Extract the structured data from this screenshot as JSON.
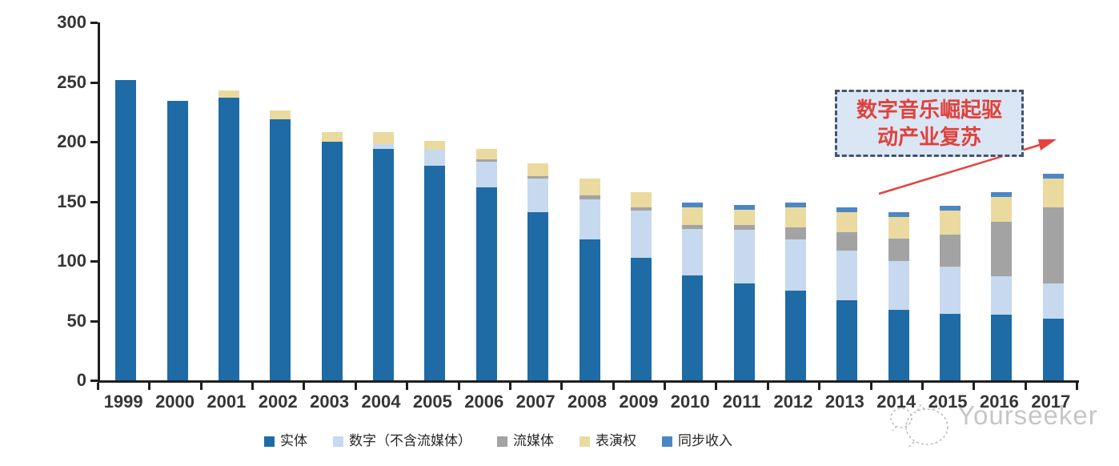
{
  "chart_data": {
    "type": "bar",
    "stacked": true,
    "title": "",
    "xlabel": "",
    "ylabel": "",
    "categories": [
      "1999",
      "2000",
      "2001",
      "2002",
      "2003",
      "2004",
      "2005",
      "2006",
      "2007",
      "2008",
      "2009",
      "2010",
      "2011",
      "2012",
      "2013",
      "2014",
      "2015",
      "2016",
      "2017"
    ],
    "series": [
      {
        "name": "实体",
        "color": "#1E6BA6",
        "values": [
          252,
          234,
          237,
          219,
          200,
          194,
          180,
          162,
          141,
          118,
          103,
          88,
          81,
          75,
          67,
          59,
          56,
          55,
          52
        ]
      },
      {
        "name": "数字（不含流媒体）",
        "color": "#C6D9EE",
        "values": [
          0,
          0,
          0,
          0,
          0,
          4,
          13,
          21,
          28,
          34,
          39,
          39,
          45,
          43,
          42,
          41,
          39,
          32,
          29
        ]
      },
      {
        "name": "流媒体",
        "color": "#A3A3A3",
        "values": [
          0,
          0,
          0,
          0,
          0,
          0,
          0,
          2,
          2,
          3,
          3,
          3,
          4,
          10,
          15,
          19,
          27,
          46,
          64
        ]
      },
      {
        "name": "表演权",
        "color": "#EADAA0",
        "values": [
          0,
          0,
          6,
          7,
          8,
          10,
          8,
          9,
          11,
          14,
          13,
          15,
          13,
          17,
          17,
          18,
          20,
          21,
          24
        ]
      },
      {
        "name": "同步收入",
        "color": "#4D86C6",
        "values": [
          0,
          0,
          0,
          0,
          0,
          0,
          0,
          0,
          0,
          0,
          0,
          4,
          4,
          4,
          4,
          4,
          4,
          4,
          4
        ]
      }
    ],
    "ylim": [
      0,
      300
    ],
    "y_ticks": [
      0,
      50,
      100,
      150,
      200,
      250,
      300
    ],
    "grid": false,
    "legend_position": "bottom"
  },
  "annotation": {
    "line1": "数字音乐崛起驱",
    "line2": "动产业复苏",
    "text_color": "#E0413C",
    "box_fill": "#DBE6F5",
    "box_border": "#44546A",
    "arrow_color": "#E8413C"
  },
  "watermark": {
    "text": "Yourseeker",
    "color": "#C6C6C6"
  }
}
